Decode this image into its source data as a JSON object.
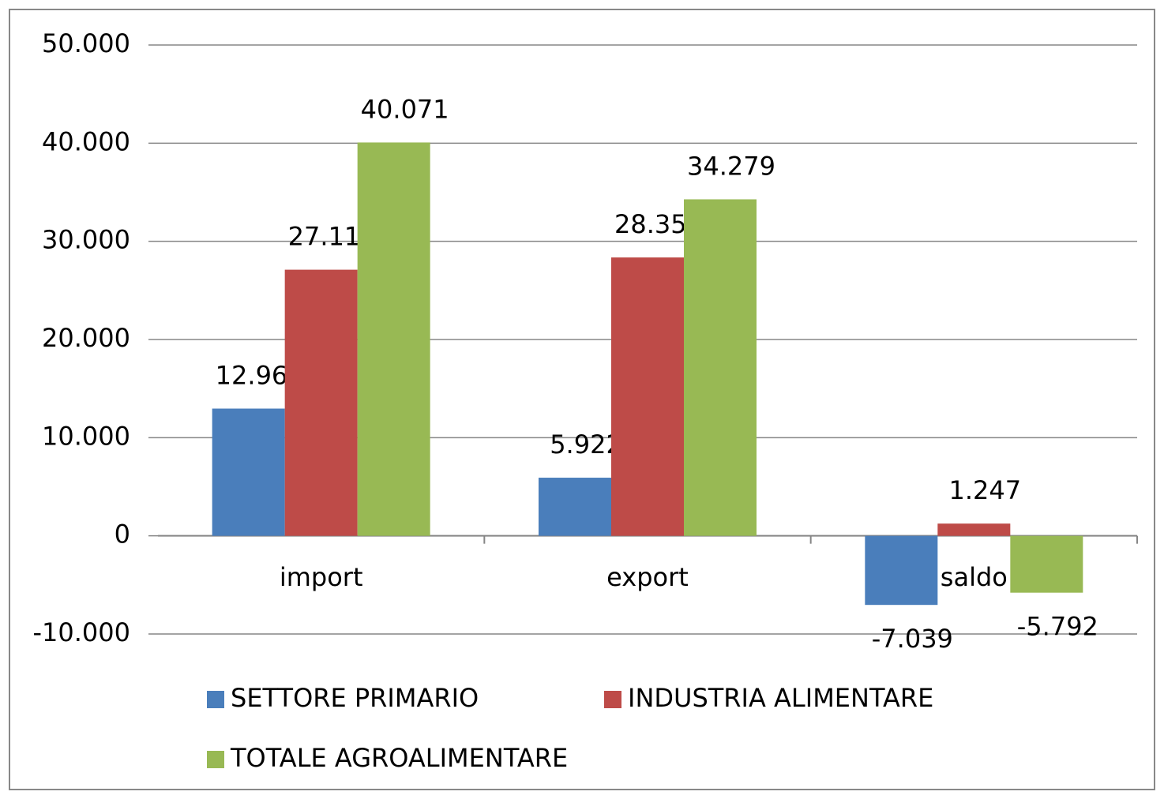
{
  "chart_data": {
    "type": "bar",
    "categories": [
      "import",
      "export",
      "saldo"
    ],
    "series": [
      {
        "name": "SETTORE PRIMARIO",
        "color": "#4a7ebb",
        "values": [
          12961,
          5922,
          -7039
        ],
        "value_labels": [
          "12.961",
          "5.922",
          "-7.039"
        ]
      },
      {
        "name": "INDUSTRIA ALIMENTARE",
        "color": "#be4b48",
        "values": [
          27110,
          28357,
          1247
        ],
        "value_labels": [
          "27.110",
          "28.357",
          "1.247"
        ]
      },
      {
        "name": "TOTALE AGROALIMENTARE",
        "color": "#98b954",
        "values": [
          40071,
          34279,
          -5792
        ],
        "value_labels": [
          "40.071",
          "34.279",
          "-5.792"
        ]
      }
    ],
    "ylim": [
      -10000,
      50000
    ],
    "yticks": [
      {
        "value": -10000,
        "label": "-10.000"
      },
      0,
      {
        "value": 10000,
        "label": "10.000"
      },
      {
        "value": 20000,
        "label": "20.000"
      },
      {
        "value": 30000,
        "label": "30.000"
      },
      {
        "value": 40000,
        "label": "40.000"
      },
      {
        "value": 50000,
        "label": "50.000"
      }
    ],
    "grid": true,
    "legend": "bottom"
  }
}
